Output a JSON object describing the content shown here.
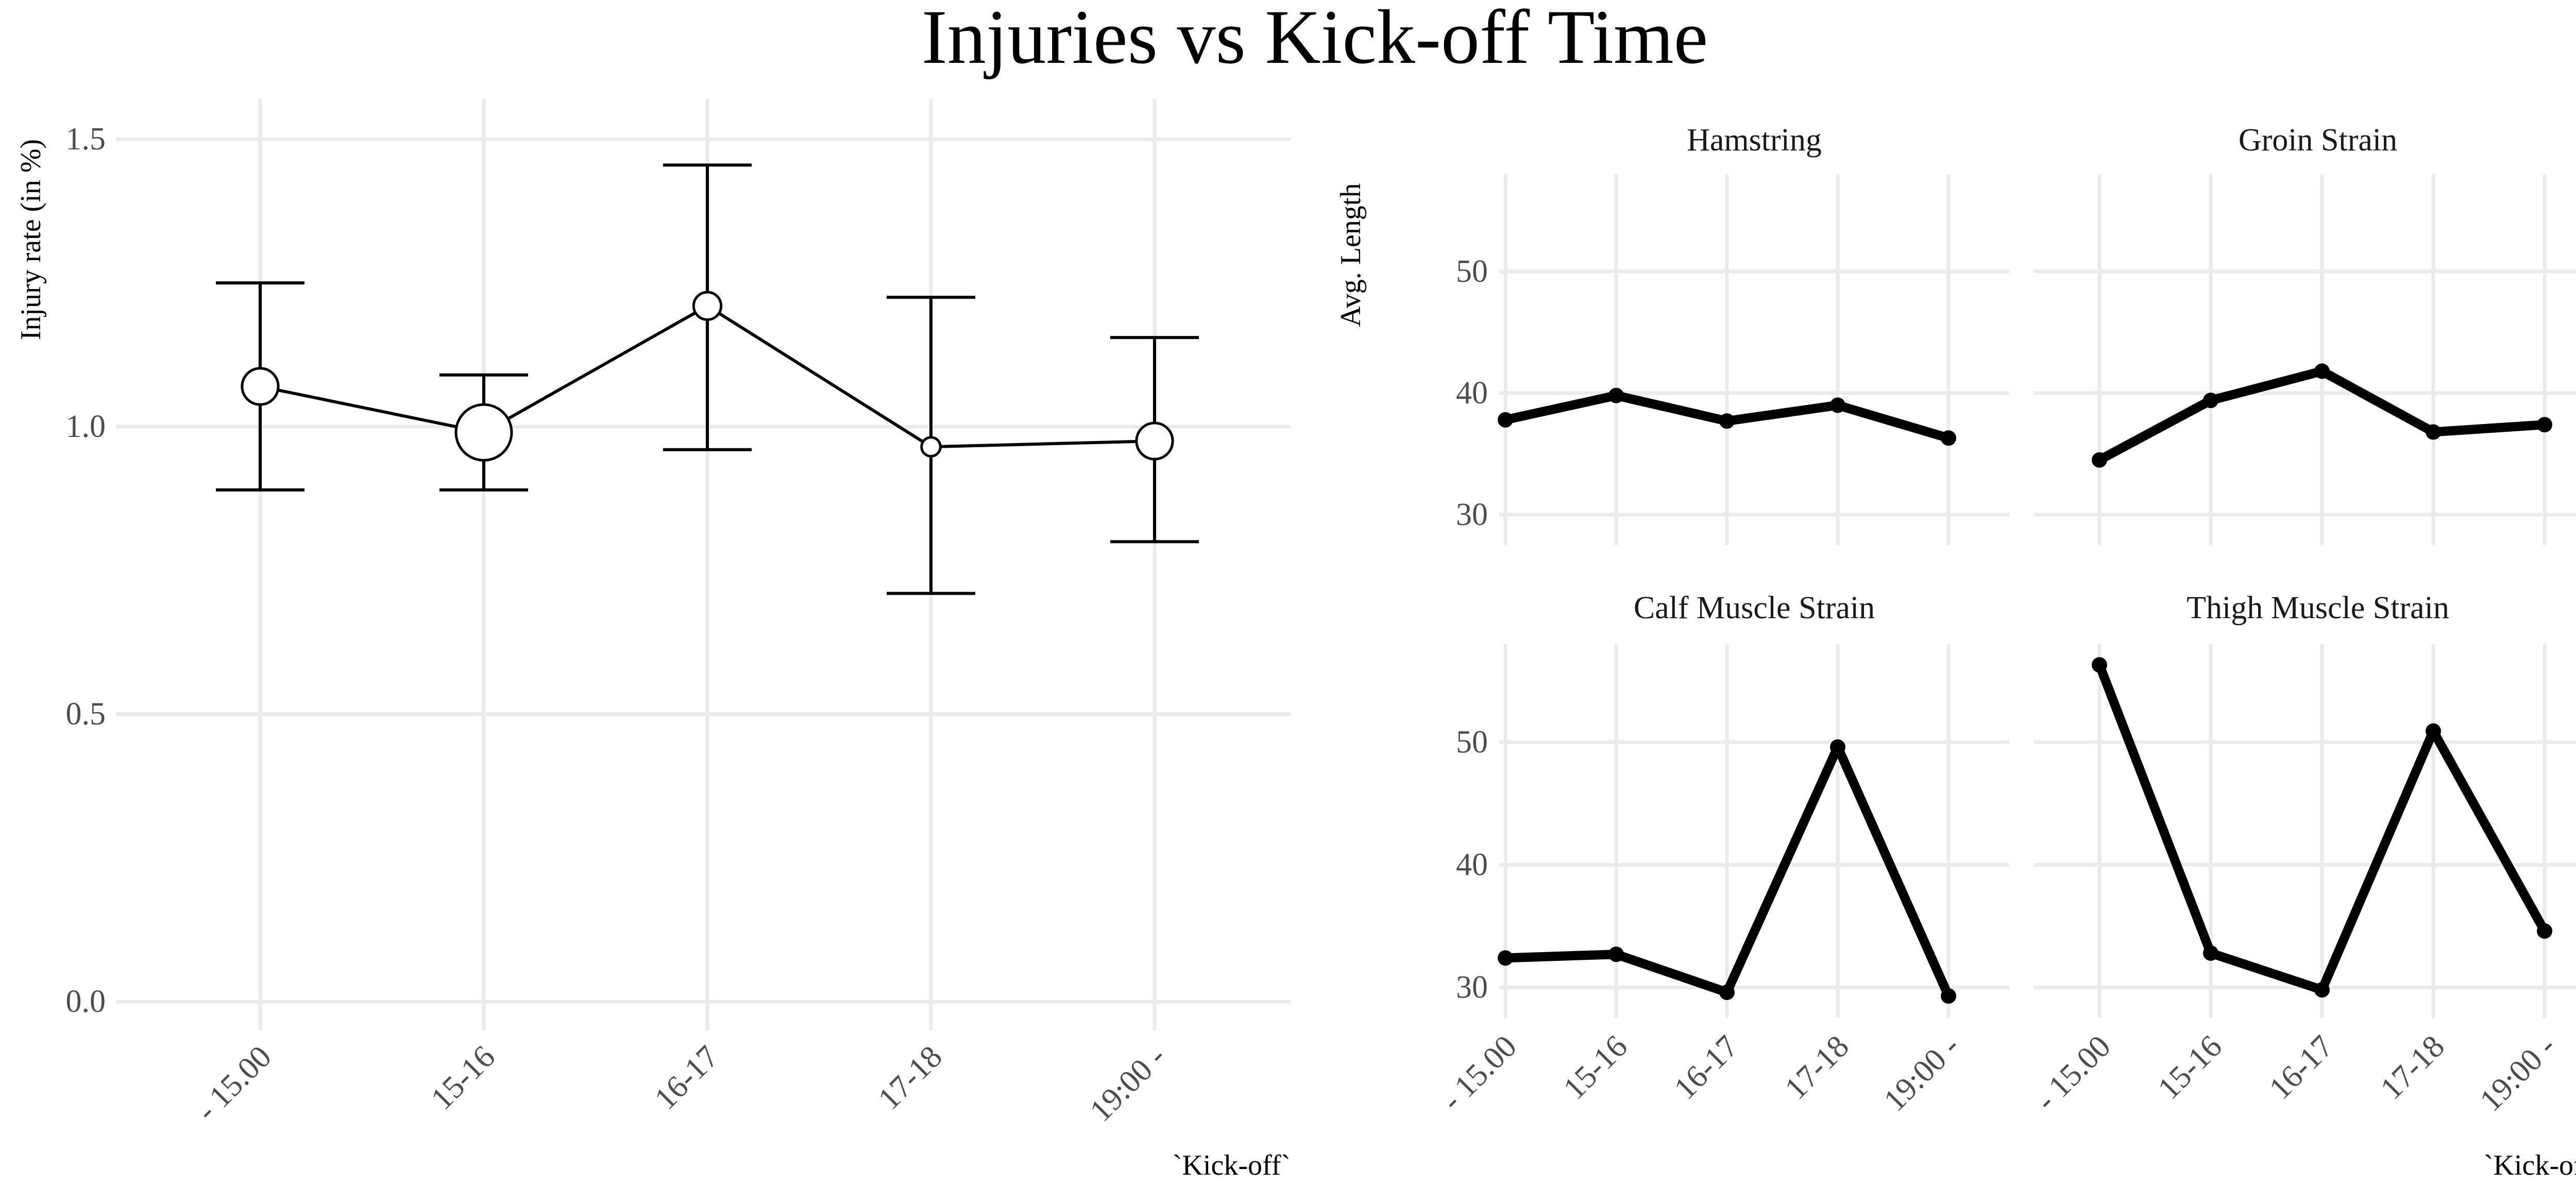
{
  "title": "Injuries vs Kick-off Time",
  "chart_data": [
    {
      "type": "line",
      "panel": "left",
      "categories": [
        "- 15.00",
        "15-16",
        "16-17",
        "17-18",
        "19:00 -"
      ],
      "values": [
        1.07,
        0.99,
        1.21,
        0.965,
        0.975
      ],
      "error_lower": [
        0.89,
        0.89,
        0.96,
        0.71,
        0.8
      ],
      "error_upper": [
        1.25,
        1.09,
        1.455,
        1.225,
        1.155
      ],
      "point_size": [
        0.55,
        1.0,
        0.35,
        0.15,
        0.55
      ],
      "ylabel": "Injury rate (in %)",
      "xlabel": "`Kick-off`",
      "ylim": [
        -0.05,
        1.57
      ],
      "yticks": [
        "0.0",
        "0.5",
        "1.0",
        "1.5"
      ],
      "grid": true,
      "colors": {
        "line": "#000000",
        "point_fill": "#ffffff",
        "grid": "#ebebeb"
      }
    },
    {
      "type": "line",
      "panel": "right-facets",
      "categories": [
        "- 15.00",
        "15-16",
        "16-17",
        "17-18",
        "19:00 -"
      ],
      "ylabel": "Avg. Length",
      "xlabel": "`Kick-off`",
      "ylim": [
        27.5,
        58
      ],
      "yticks": [
        "30",
        "40",
        "50"
      ],
      "grid": true,
      "facets": [
        {
          "name": "Hamstring",
          "values": [
            37.8,
            39.8,
            37.7,
            39.0,
            36.3
          ]
        },
        {
          "name": "Groin Strain",
          "values": [
            34.5,
            39.4,
            41.8,
            36.8,
            37.4
          ]
        },
        {
          "name": "Calf Muscle Strain",
          "values": [
            32.4,
            32.7,
            29.6,
            49.6,
            29.3
          ]
        },
        {
          "name": "Thigh Muscle Strain",
          "values": [
            56.3,
            32.8,
            29.8,
            50.9,
            34.6
          ]
        }
      ],
      "colors": {
        "line": "#000000",
        "grid": "#ebebeb"
      }
    }
  ]
}
